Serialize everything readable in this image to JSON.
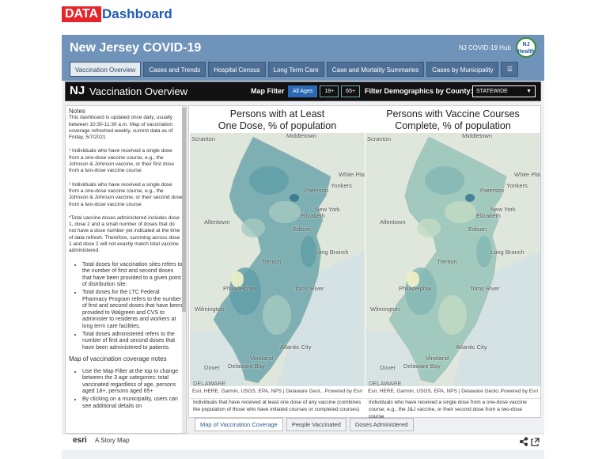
{
  "brand": {
    "box": "DATA",
    "word": "Dashboard"
  },
  "header": {
    "title": "New Jersey COVID-19",
    "hub": "NJ COVID-19 Hub",
    "logo": [
      "NJ",
      "Health"
    ]
  },
  "tabs": [
    "Vaccination Overview",
    "Cases and Trends",
    "Hospital Census",
    "Long Term Care",
    "Case and Mortality Summaries",
    "Cases by Municipality"
  ],
  "panel": {
    "logo": "NJ",
    "title": "Vaccination Overview",
    "filter_label": "Map Filter",
    "filters": [
      "All Ages",
      "18+",
      "65+"
    ],
    "county_label": "Filter Demographics by County:",
    "county_value": "STATEWIDE"
  },
  "notes": {
    "heading": "Notes",
    "paragraphs": [
      "This dashboard is updated once daily, usually between 10:30-11:30 a.m. Map of vaccination coverage refreshed weekly, current data as of Friday, 5/7/2021",
      "¹ Individuals who have received a single dose from a one-dose vaccine course, e.g., the Johnson & Johnson vaccine, or their first dose from a two-dose vaccine course",
      "² Individuals who have received a single dose from a one-dose vaccine course, e.g., the Johnson & Johnson vaccine, or their second dose from a two-dose vaccine course",
      "*Total vaccine doses administered includes dose 1, dose 2 and a small number of doses that do not have a dose number yet indicated at the time of data refresh. Therefore, summing across dose 1 and dose 2 will not exactly match total vaccine administered."
    ],
    "bullets": [
      "Total doses for vaccination sites refers to the number of first and second doses that have been provided to a given point of distribution site.",
      "Total doses for the LTC Federal Pharmacy Program refers to the number of first and second doses that have been provided to Walgreen and CVS to administer to residents and workers at long term care facilities.",
      "Total doses administered refers to the number of first and second doses that have been administered to patients."
    ],
    "subheading": "Map of vaccination coverage notes",
    "bullets2": [
      "Use the Map Filter at the top to change between the 3 age categories: total vaccinated regardless of age, persons aged 18+, persons aged 65+",
      "By clicking on a municipality, users can see additional details on"
    ]
  },
  "map_places": [
    "Scranton",
    "Middletown",
    "White Plains",
    "Yonkers",
    "Paterson",
    "New York",
    "Elizabeth",
    "Allentown",
    "Edison",
    "Trenton",
    "Long Branch",
    "Philadelphia",
    "Toms River",
    "Wilmington",
    "Atlantic City",
    "Vineland",
    "Dover",
    "Delaware Bay",
    "DELAWARE"
  ],
  "maps": [
    {
      "title": [
        "Persons with at Least",
        "One Dose, % of population"
      ],
      "attribution": "Esri, HERE, Garmin, USGS, EPA, NPS | Delaware Geol...",
      "powered": "Powered by Esri",
      "caption": "Individuals that have received at least one dose of any vaccine (combines the population of those who have initiated courses or completed courses)"
    },
    {
      "title": [
        "Persons with Vaccine Courses",
        "Complete, % of population"
      ],
      "attribution": "Esri, HERE, Garmin, USGS, EPA, NPS | Delaware Geolo...",
      "powered": "Powered by Esri",
      "caption": "Individuals who have received a single dose from a one-dose vaccine course, e.g., the J&J vaccine, or their second dose from a two-dose course"
    }
  ],
  "bottom_tabs": [
    "Map of Vaccination Coverage",
    "People Vaccinated",
    "Doses Administered"
  ],
  "footer": {
    "logo": "esri",
    "label": "A Story Map"
  }
}
